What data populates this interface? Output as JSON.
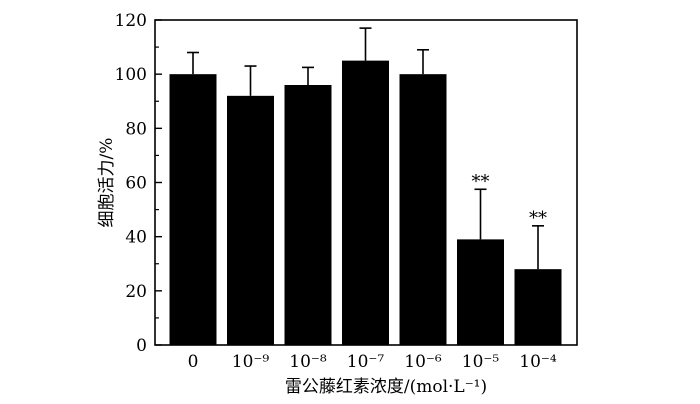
{
  "chart_data": {
    "type": "bar",
    "title": "",
    "xlabel": "雷公藤红素浓度/(mol·L⁻¹)",
    "ylabel": "细胞活力/%",
    "ylim": [
      0,
      120
    ],
    "yticks": [
      "0",
      "20",
      "40",
      "60",
      "80",
      "100",
      "120"
    ],
    "categories": [
      "0",
      "10⁻⁹",
      "10⁻⁸",
      "10⁻⁷",
      "10⁻⁶",
      "10⁻⁵",
      "10⁻⁴"
    ],
    "values": [
      100,
      92,
      96,
      105,
      100,
      39,
      28
    ],
    "error": [
      8,
      11,
      6.5,
      12,
      9,
      18.5,
      16
    ],
    "significance": [
      "",
      "",
      "",
      "",
      "",
      "**",
      "**"
    ],
    "colors": {
      "bar": "#000000",
      "axis": "#000000",
      "background": "#ffffff"
    }
  }
}
